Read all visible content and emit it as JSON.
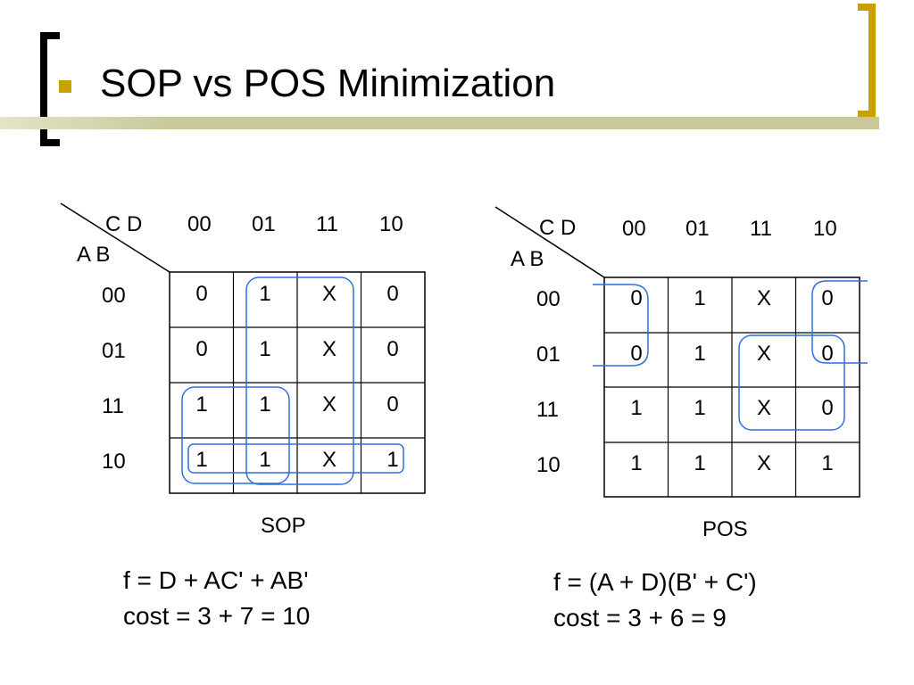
{
  "slide": {
    "title": "SOP vs POS Minimization",
    "colors": {
      "accent": "#c9a100",
      "rule": "#c8c89a",
      "bracket_left": "#000000",
      "bracket_right": "#c9a100",
      "loop": "#2f6fe0"
    }
  },
  "sop_map": {
    "cd_label": "C D",
    "ab_label": "A B",
    "col_headers": [
      "00",
      "01",
      "11",
      "10"
    ],
    "row_headers": [
      "00",
      "01",
      "11",
      "10"
    ],
    "cells": [
      [
        "0",
        "1",
        "X",
        "0"
      ],
      [
        "0",
        "1",
        "X",
        "0"
      ],
      [
        "1",
        "1",
        "X",
        "0"
      ],
      [
        "1",
        "1",
        "X",
        "1"
      ]
    ],
    "caption": "SOP",
    "formula": "f = D + AC' + AB'",
    "cost": "cost = 3 + 7 = 10"
  },
  "pos_map": {
    "cd_label": "C D",
    "ab_label": "A B",
    "col_headers": [
      "00",
      "01",
      "11",
      "10"
    ],
    "row_headers": [
      "00",
      "01",
      "11",
      "10"
    ],
    "cells": [
      [
        "0",
        "1",
        "X",
        "0"
      ],
      [
        "0",
        "1",
        "X",
        "0"
      ],
      [
        "1",
        "1",
        "X",
        "0"
      ],
      [
        "1",
        "1",
        "X",
        "1"
      ]
    ],
    "caption": "POS",
    "formula": "f = (A + D)(B' + C')",
    "cost": "cost = 3 + 6 = 9"
  }
}
